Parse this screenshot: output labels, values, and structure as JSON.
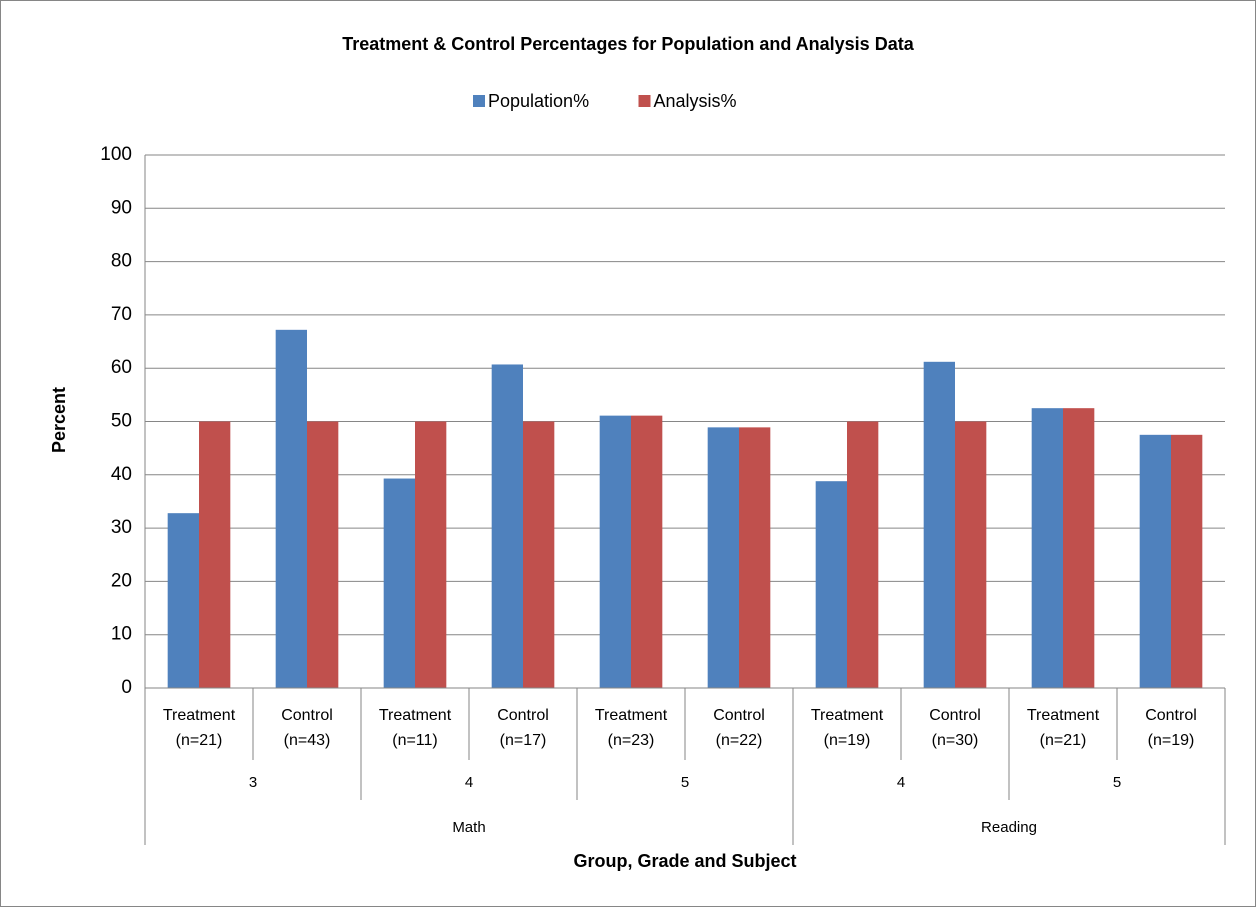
{
  "chart_data": {
    "type": "bar",
    "title": "Treatment & Control Percentages for Population and Analysis Data",
    "x_label": "Group, Grade and Subject",
    "y_label": "Percent",
    "categories": [
      [
        "Treatment",
        "(n=21)",
        "3",
        "Math"
      ],
      [
        "Control",
        "(n=43)",
        "3",
        "Math"
      ],
      [
        "Treatment",
        "(n=11)",
        "4",
        "Math"
      ],
      [
        "Control",
        "(n=17)",
        "4",
        "Math"
      ],
      [
        "Treatment",
        "(n=23)",
        "5",
        "Math"
      ],
      [
        "Control",
        "(n=22)",
        "5",
        "Math"
      ],
      [
        "Treatment",
        "(n=19)",
        "4",
        "Reading"
      ],
      [
        "Control",
        "(n=30)",
        "4",
        "Reading"
      ],
      [
        "Treatment",
        "(n=21)",
        "5",
        "Reading"
      ],
      [
        "Control",
        "(n=19)",
        "5",
        "Reading"
      ]
    ],
    "series": [
      {
        "name": "Population%",
        "color": "#4f81bd",
        "values": [
          32.8,
          67.2,
          39.3,
          60.7,
          51.1,
          48.9,
          38.8,
          61.2,
          52.5,
          47.5
        ]
      },
      {
        "name": "Analysis%",
        "color": "#c0504d",
        "values": [
          50,
          50,
          50,
          50,
          51.1,
          48.9,
          50,
          50,
          52.5,
          47.5
        ]
      }
    ],
    "ylim": [
      0,
      100
    ],
    "yticks": [
      0,
      10,
      20,
      30,
      40,
      50,
      60,
      70,
      80,
      90,
      100
    ],
    "grid": true,
    "legend": "top"
  }
}
